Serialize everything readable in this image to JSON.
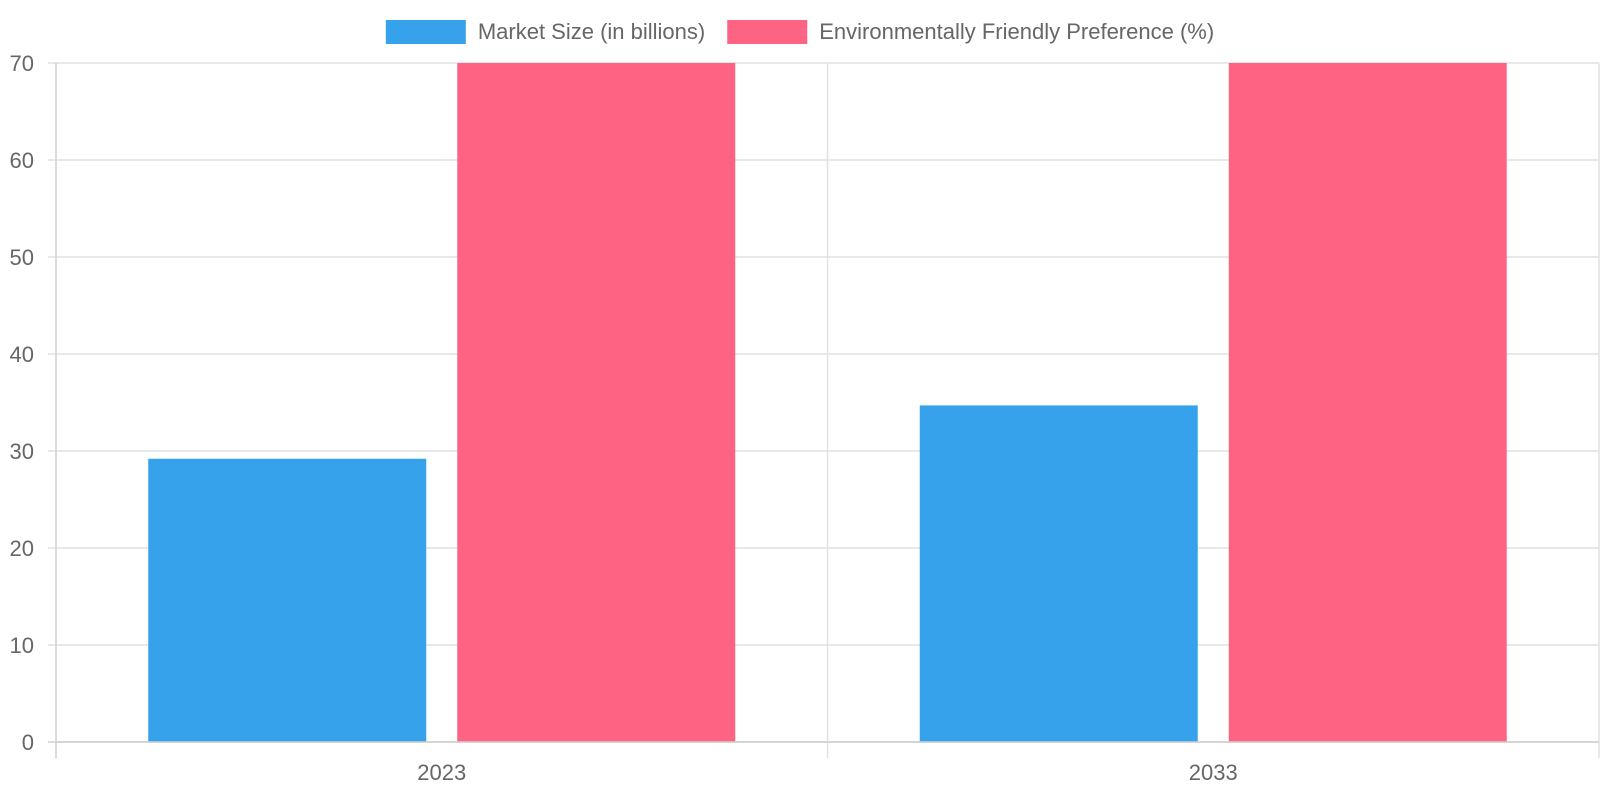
{
  "chart_data": {
    "type": "bar",
    "categories": [
      "2023",
      "2033"
    ],
    "series": [
      {
        "name": "Market Size (in billions)",
        "values": [
          29.2,
          34.7
        ],
        "color": "#36a2eb"
      },
      {
        "name": "Environmentally Friendly Preference (%)",
        "values": [
          70,
          70
        ],
        "color": "#ff6384"
      }
    ],
    "ylim": [
      0,
      70
    ],
    "y_ticks": [
      0,
      10,
      20,
      30,
      40,
      50,
      60,
      70
    ],
    "grid": true,
    "legend_position": "top-center",
    "title": "",
    "xlabel": "",
    "ylabel": ""
  }
}
